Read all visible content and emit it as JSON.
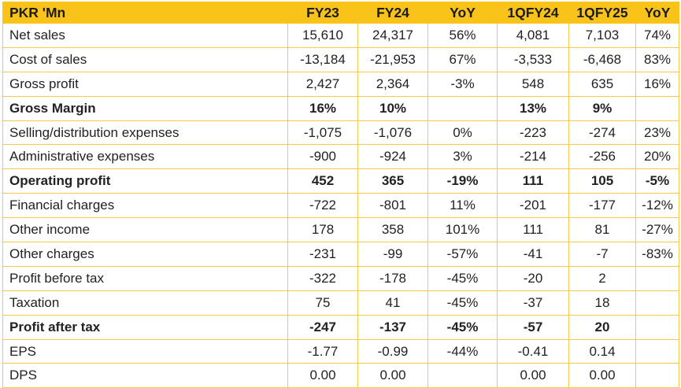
{
  "headers": [
    "PKR 'Mn",
    "FY23",
    "FY24",
    "YoY",
    "1QFY24",
    "1QFY25",
    "YoY"
  ],
  "rows": [
    {
      "label": "Net sales",
      "bold": false,
      "values": [
        "15,610",
        "24,317",
        "56%",
        "4,081",
        "7,103",
        "74%"
      ]
    },
    {
      "label": "Cost of sales",
      "bold": false,
      "values": [
        "-13,184",
        "-21,953",
        "67%",
        "-3,533",
        "-6,468",
        "83%"
      ]
    },
    {
      "label": "Gross profit",
      "bold": false,
      "values": [
        "2,427",
        "2,364",
        "-3%",
        "548",
        "635",
        "16%"
      ]
    },
    {
      "label": "Gross Margin",
      "bold": true,
      "values": [
        "16%",
        "10%",
        "",
        "13%",
        "9%",
        ""
      ]
    },
    {
      "label": "Selling/distribution expenses",
      "bold": false,
      "values": [
        "-1,075",
        "-1,076",
        "0%",
        "-223",
        "-274",
        "23%"
      ]
    },
    {
      "label": "Administrative expenses",
      "bold": false,
      "values": [
        "-900",
        "-924",
        "3%",
        "-214",
        "-256",
        "20%"
      ]
    },
    {
      "label": "Operating profit",
      "bold": true,
      "values": [
        "452",
        "365",
        "-19%",
        "111",
        "105",
        "-5%"
      ]
    },
    {
      "label": "Financial charges",
      "bold": false,
      "values": [
        "-722",
        "-801",
        "11%",
        "-201",
        "-177",
        "-12%"
      ]
    },
    {
      "label": "Other income",
      "bold": false,
      "values": [
        "178",
        "358",
        "101%",
        "111",
        "81",
        "-27%"
      ]
    },
    {
      "label": "Other charges",
      "bold": false,
      "values": [
        "-231",
        "-99",
        "-57%",
        "-41",
        "-7",
        "-83%"
      ]
    },
    {
      "label": "Profit before tax",
      "bold": false,
      "values": [
        "-322",
        "-178",
        "-45%",
        "-20",
        "2",
        ""
      ]
    },
    {
      "label": "Taxation",
      "bold": false,
      "values": [
        "75",
        "41",
        "-45%",
        "-37",
        "18",
        ""
      ]
    },
    {
      "label": "Profit after tax",
      "bold": true,
      "values": [
        "-247",
        "-137",
        "-45%",
        "-57",
        "20",
        ""
      ]
    },
    {
      "label": "EPS",
      "bold": false,
      "values": [
        "-1.77",
        "-0.99",
        "-44%",
        "-0.41",
        "0.14",
        ""
      ]
    },
    {
      "label": "DPS",
      "bold": false,
      "values": [
        "0.00",
        "0.00",
        "",
        "0.00",
        "0.00",
        ""
      ]
    }
  ],
  "colors": {
    "header_bg": "#f9c31a",
    "border": "#f2c94c",
    "text": "#222222"
  }
}
